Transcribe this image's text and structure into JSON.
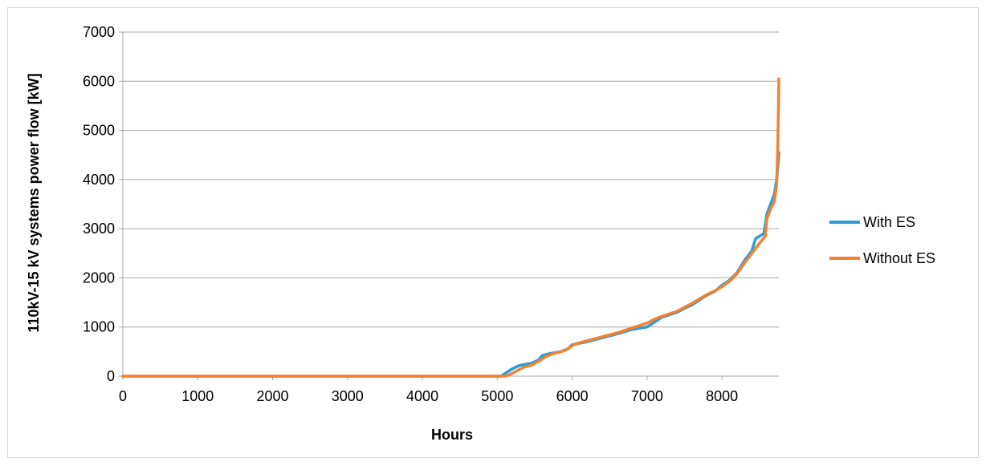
{
  "chart_data": {
    "type": "line",
    "title": "",
    "xlabel": "Hours",
    "ylabel": "110kV-15 kV systems power flow [kW]",
    "xlim": [
      0,
      8760
    ],
    "ylim": [
      0,
      7000
    ],
    "x_ticks": [
      0,
      1000,
      2000,
      3000,
      4000,
      5000,
      6000,
      7000,
      8000
    ],
    "y_ticks": [
      0,
      1000,
      2000,
      3000,
      4000,
      5000,
      6000,
      7000
    ],
    "grid": "horizontal",
    "legend": "right",
    "series": [
      {
        "name": "With ES",
        "color": "#2e9bd6",
        "points": [
          [
            0,
            0
          ],
          [
            5050,
            0
          ],
          [
            5100,
            50
          ],
          [
            5200,
            150
          ],
          [
            5300,
            220
          ],
          [
            5450,
            260
          ],
          [
            5550,
            330
          ],
          [
            5600,
            420
          ],
          [
            5700,
            460
          ],
          [
            5850,
            500
          ],
          [
            5950,
            560
          ],
          [
            6000,
            640
          ],
          [
            6200,
            700
          ],
          [
            6400,
            780
          ],
          [
            6600,
            860
          ],
          [
            6800,
            950
          ],
          [
            7000,
            1000
          ],
          [
            7100,
            1100
          ],
          [
            7200,
            1200
          ],
          [
            7400,
            1300
          ],
          [
            7500,
            1380
          ],
          [
            7600,
            1450
          ],
          [
            7700,
            1550
          ],
          [
            7800,
            1650
          ],
          [
            7900,
            1720
          ],
          [
            8000,
            1850
          ],
          [
            8100,
            1950
          ],
          [
            8200,
            2100
          ],
          [
            8300,
            2350
          ],
          [
            8400,
            2550
          ],
          [
            8450,
            2800
          ],
          [
            8560,
            2900
          ],
          [
            8600,
            3300
          ],
          [
            8650,
            3500
          ],
          [
            8700,
            3700
          ],
          [
            8730,
            4000
          ],
          [
            8750,
            4300
          ],
          [
            8760,
            4550
          ]
        ]
      },
      {
        "name": "Without ES",
        "color": "#f28132",
        "points": [
          [
            0,
            0
          ],
          [
            5100,
            0
          ],
          [
            5150,
            20
          ],
          [
            5250,
            100
          ],
          [
            5350,
            180
          ],
          [
            5450,
            220
          ],
          [
            5550,
            300
          ],
          [
            5650,
            400
          ],
          [
            5750,
            460
          ],
          [
            5900,
            520
          ],
          [
            5980,
            600
          ],
          [
            6050,
            660
          ],
          [
            6200,
            720
          ],
          [
            6400,
            800
          ],
          [
            6600,
            880
          ],
          [
            6800,
            980
          ],
          [
            7000,
            1080
          ],
          [
            7100,
            1160
          ],
          [
            7200,
            1220
          ],
          [
            7400,
            1320
          ],
          [
            7500,
            1400
          ],
          [
            7600,
            1480
          ],
          [
            7700,
            1570
          ],
          [
            7800,
            1660
          ],
          [
            7900,
            1730
          ],
          [
            8000,
            1820
          ],
          [
            8100,
            1930
          ],
          [
            8200,
            2080
          ],
          [
            8300,
            2300
          ],
          [
            8400,
            2500
          ],
          [
            8500,
            2700
          ],
          [
            8580,
            2850
          ],
          [
            8600,
            3200
          ],
          [
            8650,
            3400
          ],
          [
            8700,
            3550
          ],
          [
            8730,
            3900
          ],
          [
            8745,
            4600
          ],
          [
            8755,
            5500
          ],
          [
            8760,
            6050
          ]
        ]
      }
    ]
  }
}
